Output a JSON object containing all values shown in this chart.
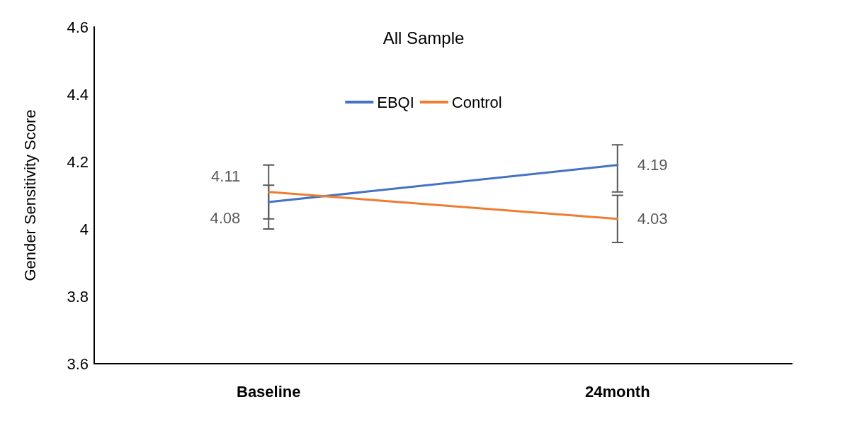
{
  "chart_data": {
    "type": "line",
    "title": "All Sample",
    "ylabel": "Gender Sensitivity Score",
    "categories": [
      "Baseline",
      "24month"
    ],
    "series": [
      {
        "name": "EBQI",
        "color": "#4472c4",
        "values": [
          4.08,
          4.19
        ],
        "errors": [
          [
            4.0,
            4.13
          ],
          [
            4.11,
            4.25
          ]
        ]
      },
      {
        "name": "Control",
        "color": "#ed7d31",
        "values": [
          4.11,
          4.03
        ],
        "errors": [
          [
            4.03,
            4.19
          ],
          [
            3.96,
            4.1
          ]
        ]
      }
    ],
    "ylim": [
      3.6,
      4.6
    ],
    "yticks": [
      3.6,
      3.8,
      4,
      4.2,
      4.4,
      4.6
    ],
    "grid": false,
    "legend": "top",
    "data_labels": true,
    "marker": "none",
    "line_style": "solid"
  }
}
